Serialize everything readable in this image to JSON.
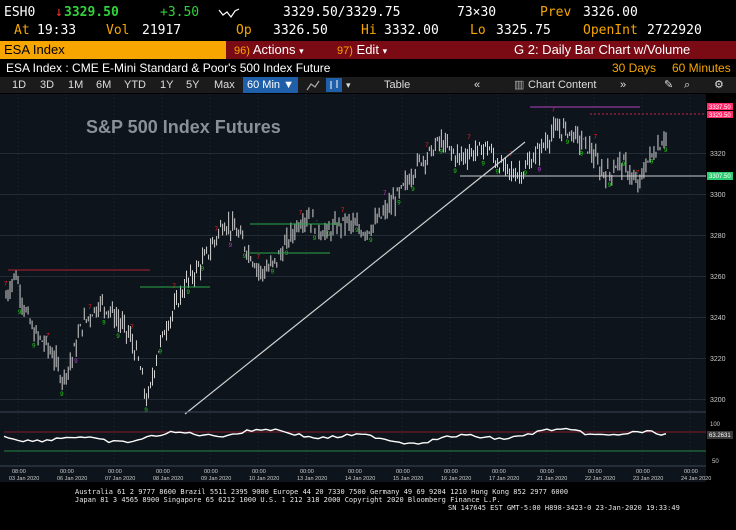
{
  "quote": {
    "ticker": "ESH0",
    "arrow": "↓",
    "last": "3329.50",
    "change": "+3.50",
    "bid_ask": "3329.50/3329.75",
    "size": "73×30",
    "prev_label": "Prev",
    "prev_value": "3326.00",
    "at_label": "At",
    "time": "19:33",
    "vol_label": "Vol",
    "volume": "21917",
    "open_label": "Op",
    "open_value": "3326.50",
    "high_label": "Hi",
    "high_value": "3332.00",
    "low_label": "Lo",
    "low_value": "3325.75",
    "openint_label": "OpenInt",
    "openint_value": "2722920"
  },
  "command_bar": {
    "security": "ESA Index",
    "actions_num": "96)",
    "actions_label": "Actions",
    "edit_num": "97)",
    "edit_label": "Edit",
    "chart_title": "G 2: Daily Bar Chart w/Volume"
  },
  "subtitle": {
    "description": "ESA Index : CME E-Mini Standard & Poor's 500 Index Future",
    "period": "30 Days",
    "interval": "60 Minutes"
  },
  "toolbar": {
    "ranges": [
      "1D",
      "3D",
      "1M",
      "6M",
      "YTD",
      "1Y",
      "5Y",
      "Max"
    ],
    "interval_select": "60 Min ▼",
    "table_label": "Table",
    "chart_content_label": "Chart Content"
  },
  "colors": {
    "bar": "#e6e6e6",
    "up_marker": "#25d21c",
    "down_marker": "#ff2020",
    "purple_marker": "#c43cd6",
    "trendline": "#cfcfcf",
    "support": "#cccccc",
    "last_price_tag": "#ff2a6a",
    "support_tag": "#2ecc71",
    "grid": "#2e3a48",
    "chart_bg": "#0e141b"
  },
  "chart_data": {
    "type": "bar",
    "title": "S&P 500 Index Futures",
    "price_ticks": [
      "3320",
      "3300",
      "3280",
      "3260",
      "3240",
      "3220",
      "3200"
    ],
    "last_price_tag": "3337.50",
    "last_price_tag2": "3329.50",
    "support_tag": "3307.50",
    "indicator_tag": "63.2631",
    "indicator_ticks": [
      "100",
      "50"
    ],
    "time_labels": [
      {
        "time": "08:00",
        "date": "03 Jan 2020"
      },
      {
        "time": "00:00",
        "date": "06 Jan 2020"
      },
      {
        "time": "00:00",
        "date": "07 Jan 2020"
      },
      {
        "time": "00:00",
        "date": "08 Jan 2020"
      },
      {
        "time": "00:00",
        "date": "09 Jan 2020"
      },
      {
        "time": "00:00",
        "date": "10 Jan 2020"
      },
      {
        "time": "00:00",
        "date": "13 Jan 2020"
      },
      {
        "time": "00:00",
        "date": "14 Jan 2020"
      },
      {
        "time": "00:00",
        "date": "15 Jan 2020"
      },
      {
        "time": "00:00",
        "date": "16 Jan 2020"
      },
      {
        "time": "00:00",
        "date": "17 Jan 2020"
      },
      {
        "time": "00:00",
        "date": "21 Jan 2020"
      },
      {
        "time": "00:00",
        "date": "22 Jan 2020"
      },
      {
        "time": "00:00",
        "date": "23 Jan 2020"
      },
      {
        "time": "00:00",
        "date": "24 Jan 2020"
      }
    ],
    "ylim": [
      3195,
      3345
    ],
    "price_path": [
      3250,
      3262,
      3244,
      3232,
      3228,
      3222,
      3210,
      3220,
      3236,
      3242,
      3247,
      3244,
      3238,
      3232,
      3220,
      3198,
      3222,
      3236,
      3245,
      3256,
      3262,
      3268,
      3276,
      3286,
      3284,
      3278,
      3270,
      3262,
      3264,
      3270,
      3278,
      3286,
      3290,
      3284,
      3281,
      3284,
      3287,
      3284,
      3282,
      3285,
      3290,
      3296,
      3302,
      3310,
      3317,
      3320,
      3326,
      3322,
      3318,
      3320,
      3321,
      3324,
      3316,
      3312,
      3310,
      3312,
      3318,
      3324,
      3330,
      3332,
      3330,
      3326,
      3322,
      3312,
      3310,
      3316,
      3312,
      3303,
      3316,
      3322,
      3329
    ]
  },
  "footer": {
    "line1": "Australia 61 2 9777 8600 Brazil 5511 2395 9000 Europe 44 20 7330 7500 Germany 49 69 9204 1210 Hong Kong 852 2977 6000",
    "line2": "Japan 81 3 4565 8900 Singapore 65 6212 1000 U.S. 1 212 318 2000 Copyright 2020 Bloomberg Finance L.P.",
    "line3": "SN 147645 EST GMT-5:00 H898-3423-0 23-Jan-2020 19:33:49"
  }
}
